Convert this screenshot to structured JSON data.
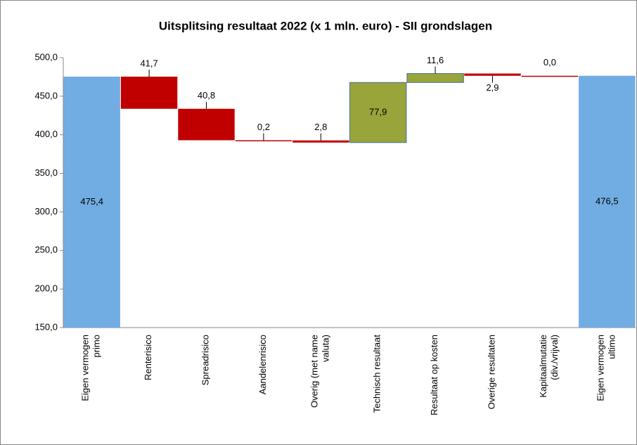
{
  "chart_data": {
    "type": "waterfall",
    "title": "Uitsplitsing resultaat 2022 (x 1 mln. euro) - SII grondslagen",
    "categories": [
      "Eigen vermogen\nprimo",
      "Renterisico",
      "Spreadrisico",
      "Aandelenrisico",
      "Overig (met name\nvaluta)",
      "Technisch resultaat",
      "Resultaat op kosten",
      "Overige resultaten",
      "Kapitaalmutatie\n(div./vrijval)",
      "Eigen vermogen\nultimo"
    ],
    "values": [
      475.4,
      -41.7,
      -40.8,
      -0.2,
      -2.8,
      77.9,
      11.6,
      -2.9,
      0.0,
      476.5
    ],
    "value_labels": [
      "475,4",
      "41,7",
      "40,8",
      "0,2",
      "2,8",
      "77,9",
      "11,6",
      "2,9",
      "0,0",
      "476,5"
    ],
    "colors": [
      "#71ade2",
      "#c00000",
      "#c00000",
      "#c00000",
      "#c00000",
      "#99a43a",
      "#99a43a",
      "#c00000",
      "#c00000",
      "#71ade2"
    ],
    "ylim": [
      150,
      500
    ],
    "yticks": [
      {
        "value": 150,
        "label": "150,0"
      },
      {
        "value": 200,
        "label": "200,0"
      },
      {
        "value": 250,
        "label": "250,0"
      },
      {
        "value": 300,
        "label": "300,0"
      },
      {
        "value": 350,
        "label": "350,0"
      },
      {
        "value": 400,
        "label": "400,0"
      },
      {
        "value": 450,
        "label": "450,0"
      },
      {
        "value": 500,
        "label": "500,0"
      }
    ],
    "grid": false
  }
}
